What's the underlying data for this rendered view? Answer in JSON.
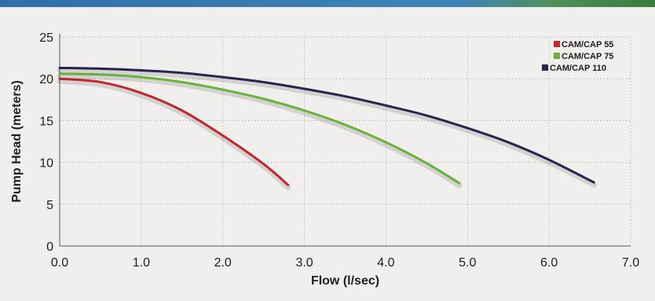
{
  "chart_data": {
    "type": "line",
    "xlabel": "Flow (l/sec)",
    "ylabel": "Pump Head (meters)",
    "xlim": [
      0,
      7
    ],
    "ylim": [
      0,
      25
    ],
    "x_ticks": [
      "0.0",
      "1.0",
      "2.0",
      "3.0",
      "4.0",
      "5.0",
      "6.0",
      "7.0"
    ],
    "y_ticks": [
      "0",
      "5",
      "10",
      "15",
      "20",
      "25"
    ],
    "grid": true,
    "legend_position": "top-right",
    "series": [
      {
        "name": "CAM/CAP 55",
        "color": "#c0282a",
        "x": [
          0.0,
          0.5,
          1.0,
          1.5,
          2.0,
          2.5,
          2.8
        ],
        "y": [
          20.0,
          19.6,
          18.3,
          16.2,
          13.2,
          9.8,
          7.3
        ]
      },
      {
        "name": "CAM/CAP 75",
        "color": "#6ab23c",
        "x": [
          0.0,
          0.5,
          1.0,
          1.5,
          2.0,
          2.5,
          3.0,
          3.5,
          4.0,
          4.5,
          4.9
        ],
        "y": [
          20.6,
          20.5,
          20.2,
          19.6,
          18.7,
          17.6,
          16.2,
          14.5,
          12.4,
          9.9,
          7.5
        ]
      },
      {
        "name": "CAM/CAP 110",
        "color": "#2b2350",
        "x": [
          0.0,
          0.5,
          1.0,
          1.5,
          2.0,
          2.5,
          3.0,
          3.5,
          4.0,
          4.5,
          5.0,
          5.5,
          6.0,
          6.55
        ],
        "y": [
          21.3,
          21.2,
          21.0,
          20.7,
          20.2,
          19.6,
          18.8,
          17.9,
          16.8,
          15.6,
          14.1,
          12.4,
          10.3,
          7.6
        ]
      }
    ]
  }
}
